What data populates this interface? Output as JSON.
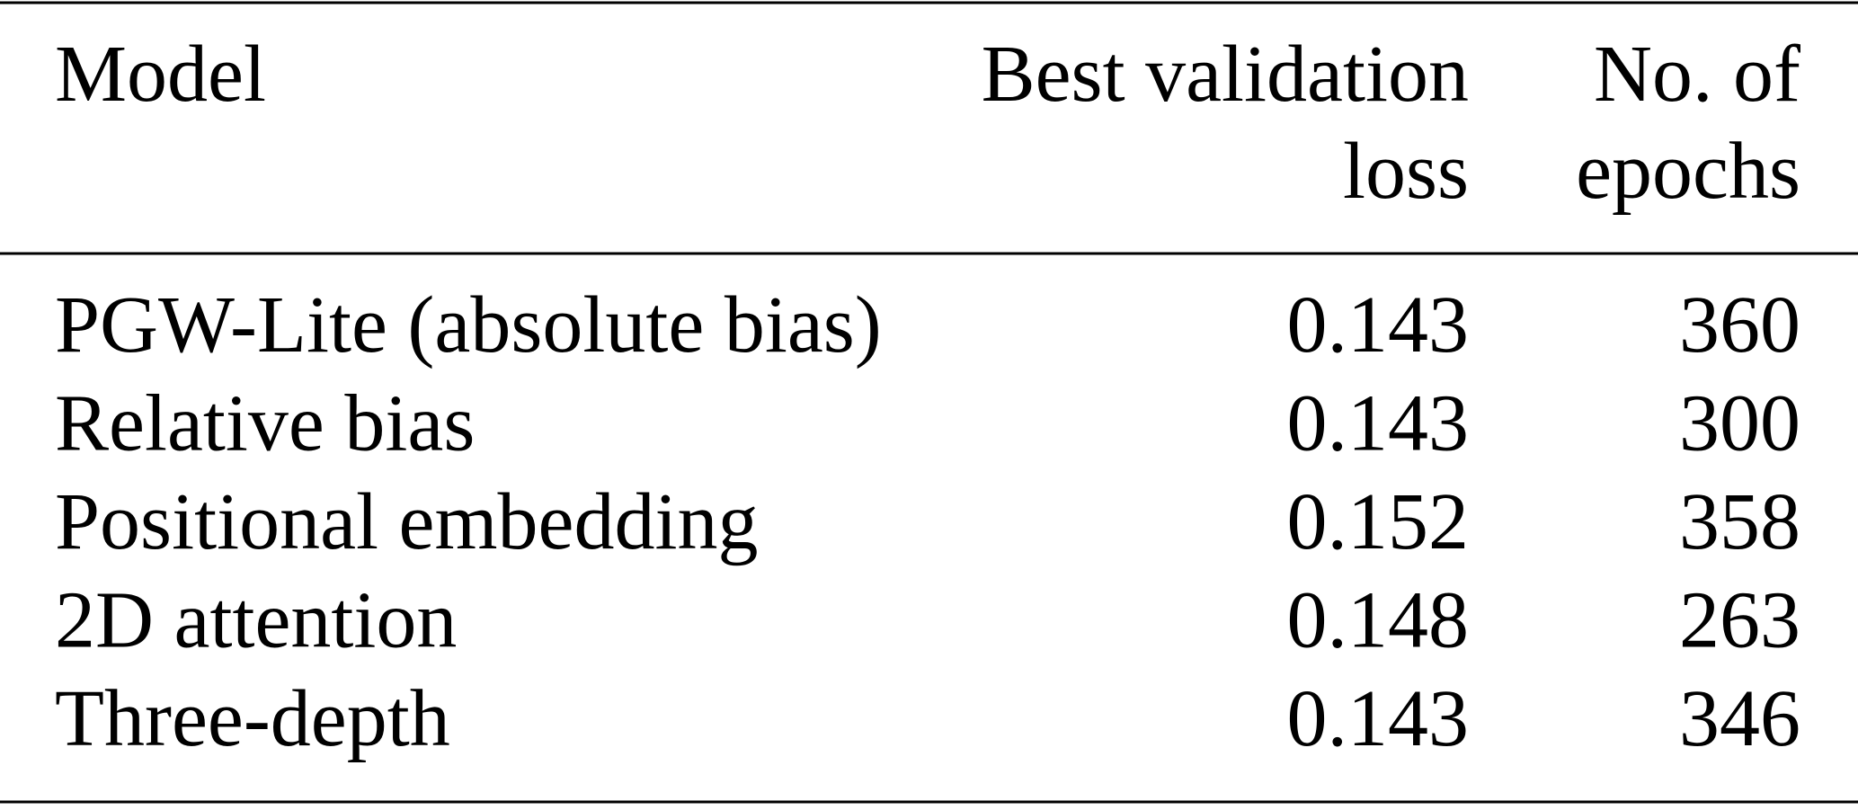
{
  "table": {
    "header": [
      [
        "Model"
      ],
      [
        "Best validation",
        "loss"
      ],
      [
        "No. of",
        "epochs"
      ]
    ],
    "rows": [
      [
        "PGW-Lite (absolute bias)",
        0.143,
        360
      ],
      [
        "Relative bias",
        0.143,
        300
      ],
      [
        "Positional embedding",
        0.152,
        358
      ],
      [
        "2D attention",
        0.148,
        263
      ],
      [
        "Three-depth",
        0.143,
        346
      ]
    ]
  }
}
